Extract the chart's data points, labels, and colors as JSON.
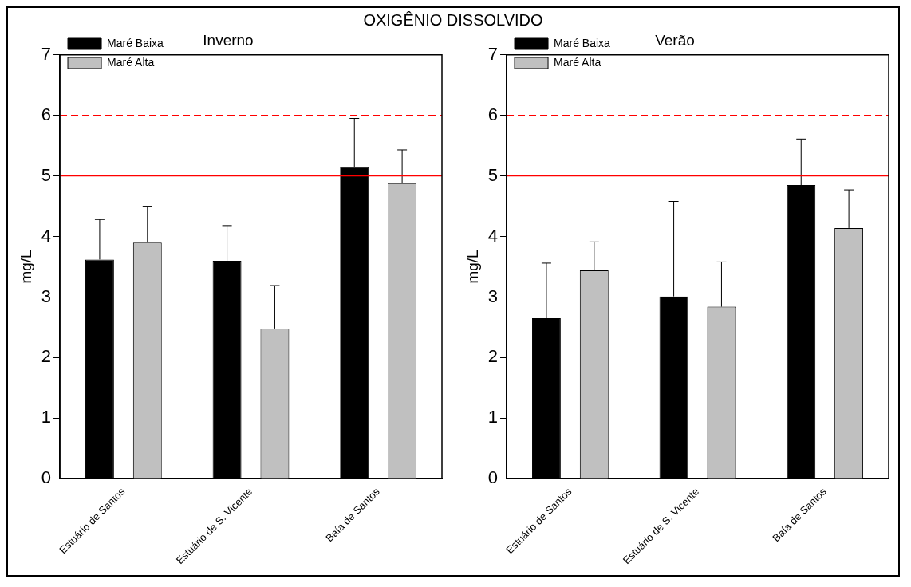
{
  "chart_data": [
    {
      "type": "bar",
      "title": "OXIGÊNIO DISSOLVIDO",
      "subtitle": "Inverno",
      "ylabel": "mg/L",
      "categories": [
        "Estuário de Santos",
        "Estuário de S. Vicente",
        "Baía de Santos"
      ],
      "series": [
        {
          "name": "Maré Baixa",
          "color": "#000000",
          "values": [
            3.62,
            3.6,
            5.15
          ],
          "errors": [
            [
              3.62,
              4.28
            ],
            [
              3.6,
              4.18
            ],
            [
              5.15,
              5.95
            ]
          ]
        },
        {
          "name": "Maré Alta",
          "color": "#c0c0c0",
          "values": [
            3.9,
            2.48,
            4.88
          ],
          "errors": [
            [
              3.9,
              4.5
            ],
            [
              2.48,
              3.19
            ],
            [
              4.88,
              5.43
            ]
          ]
        }
      ],
      "ylim": [
        0,
        7
      ],
      "yticks": [
        0,
        1,
        2,
        3,
        4,
        5,
        6,
        7
      ],
      "grid": false,
      "legend": "top left",
      "ref_lines": [
        {
          "axis": "y",
          "value": 6,
          "color": "#ff0000",
          "line_style": "dashed"
        },
        {
          "axis": "y",
          "value": 5,
          "color": "#ff0000",
          "line_style": "solid"
        }
      ]
    },
    {
      "type": "bar",
      "title": "Verão",
      "ylabel": "mg/L",
      "categories": [
        "Estuário de Santos",
        "Estuário de S. Vicente",
        "Baía de Santos"
      ],
      "series": [
        {
          "name": "Maré Baixa",
          "color": "#000000",
          "values": [
            2.65,
            3.01,
            4.85
          ],
          "errors": [
            [
              2.65,
              3.56
            ],
            [
              3.01,
              4.58
            ],
            [
              4.85,
              5.61
            ]
          ]
        },
        {
          "name": "Maré Alta",
          "color": "#c0c0c0",
          "values": [
            3.44,
            2.84,
            4.14
          ],
          "errors": [
            [
              3.44,
              3.91
            ],
            [
              2.84,
              3.58
            ],
            [
              4.14,
              4.77
            ]
          ]
        }
      ],
      "ylim": [
        0,
        7
      ],
      "yticks": [
        0,
        1,
        2,
        3,
        4,
        5,
        6,
        7
      ],
      "grid": false,
      "legend": "top left",
      "ref_lines": [
        {
          "axis": "y",
          "value": 6,
          "color": "#ff0000",
          "line_style": "dashed"
        },
        {
          "axis": "y",
          "value": 5,
          "color": "#ff0000",
          "line_style": "solid"
        }
      ]
    }
  ]
}
